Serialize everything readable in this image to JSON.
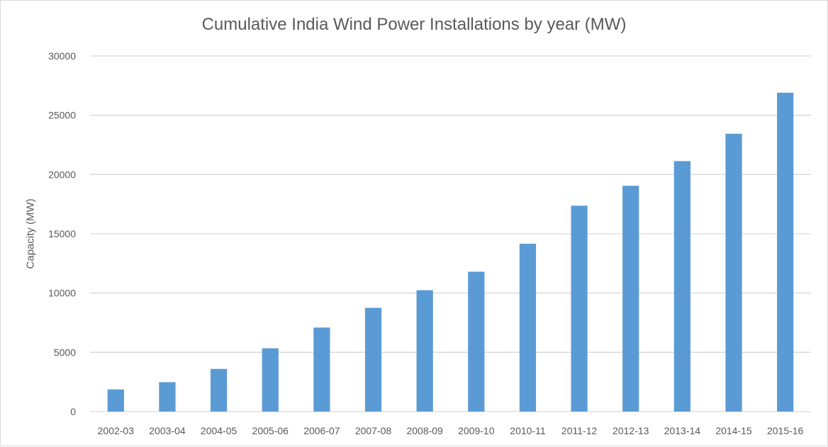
{
  "chart_data": {
    "type": "bar",
    "title": "Cumulative India Wind Power Installations by year (MW)",
    "xlabel": "",
    "ylabel": "Capacity (MW)",
    "ylim": [
      0,
      30000
    ],
    "yticks": [
      0,
      5000,
      10000,
      15000,
      20000,
      25000,
      30000
    ],
    "grid": true,
    "legend": "none",
    "bar_color": "#5b9bd5",
    "categories": [
      "2002-03",
      "2003-04",
      "2004-05",
      "2005-06",
      "2006-07",
      "2007-08",
      "2008-09",
      "2009-10",
      "2010-11",
      "2011-12",
      "2012-13",
      "2013-14",
      "2014-15",
      "2015-16"
    ],
    "values": [
      1870,
      2480,
      3600,
      5340,
      7090,
      8750,
      10240,
      11800,
      14160,
      17370,
      19050,
      21130,
      23440,
      26900
    ]
  }
}
